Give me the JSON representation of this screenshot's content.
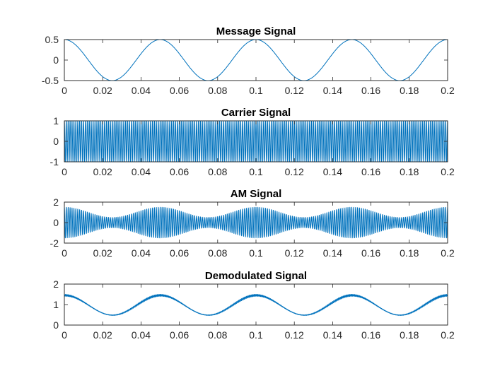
{
  "chart_data": [
    {
      "type": "line",
      "title": "Message Signal",
      "xlim": [
        0,
        0.2
      ],
      "ylim": [
        -0.5,
        0.5
      ],
      "xticks": [
        "0",
        "0.02",
        "0.04",
        "0.06",
        "0.08",
        "0.1",
        "0.12",
        "0.14",
        "0.16",
        "0.18",
        "0.2"
      ],
      "yticks": [
        "-0.5",
        "0",
        "0.5"
      ],
      "series": [
        {
          "signal": "message",
          "amplitude": 0.5,
          "frequency_hz": 20,
          "color": "#0072bd"
        }
      ]
    },
    {
      "type": "line",
      "title": "Carrier Signal",
      "xlim": [
        0,
        0.2
      ],
      "ylim": [
        -1,
        1
      ],
      "xticks": [
        "0",
        "0.02",
        "0.04",
        "0.06",
        "0.08",
        "0.1",
        "0.12",
        "0.14",
        "0.16",
        "0.18",
        "0.2"
      ],
      "yticks": [
        "-1",
        "0",
        "1"
      ],
      "series": [
        {
          "signal": "carrier",
          "amplitude": 1,
          "frequency_hz": 1000,
          "color": "#0072bd"
        }
      ]
    },
    {
      "type": "line",
      "title": "AM Signal",
      "xlim": [
        0,
        0.2
      ],
      "ylim": [
        -2,
        2
      ],
      "xticks": [
        "0",
        "0.02",
        "0.04",
        "0.06",
        "0.08",
        "0.1",
        "0.12",
        "0.14",
        "0.16",
        "0.18",
        "0.2"
      ],
      "yticks": [
        "-2",
        "0",
        "2"
      ],
      "series": [
        {
          "signal": "am",
          "carrier_amplitude": 1,
          "message_amplitude": 0.5,
          "message_frequency_hz": 20,
          "carrier_frequency_hz": 1000,
          "color": "#0072bd"
        }
      ]
    },
    {
      "type": "line",
      "title": "Demodulated Signal",
      "xlim": [
        0,
        0.2
      ],
      "ylim": [
        0,
        2
      ],
      "xticks": [
        "0",
        "0.02",
        "0.04",
        "0.06",
        "0.08",
        "0.1",
        "0.12",
        "0.14",
        "0.16",
        "0.18",
        "0.2"
      ],
      "yticks": [
        "0",
        "1",
        "2"
      ],
      "series": [
        {
          "signal": "demodulated",
          "carrier_amplitude": 1,
          "message_amplitude": 0.5,
          "message_frequency_hz": 20,
          "color": "#0072bd"
        }
      ]
    }
  ]
}
